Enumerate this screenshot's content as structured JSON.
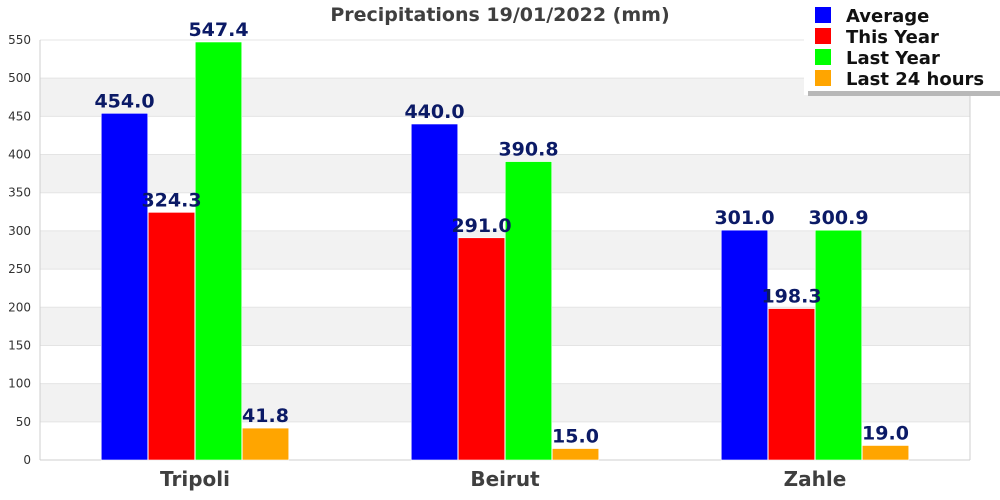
{
  "chart_data": {
    "type": "bar",
    "title": "Precipitations 19/01/2022 (mm)",
    "xlabel": "",
    "ylabel": "",
    "categories": [
      "Tripoli",
      "Beirut",
      "Zahle"
    ],
    "series": [
      {
        "name": "Average",
        "color": "#0000ff",
        "values": [
          454.0,
          440.0,
          301.0
        ]
      },
      {
        "name": "This Year",
        "color": "#ff0000",
        "values": [
          324.3,
          291.0,
          198.3
        ]
      },
      {
        "name": "Last Year",
        "color": "#00ff00",
        "values": [
          547.4,
          390.8,
          300.9
        ]
      },
      {
        "name": "Last 24 hours",
        "color": "#ffa500",
        "values": [
          41.8,
          15.0,
          19.0
        ]
      }
    ],
    "value_labels": [
      [
        "454.0",
        "440.0",
        "301.0"
      ],
      [
        "324.3",
        "291.0",
        "198.3"
      ],
      [
        "547.4",
        "390.8",
        "300.9"
      ],
      [
        "41.8",
        "15.0",
        "19.0"
      ]
    ],
    "ylim": [
      0,
      550
    ],
    "yticks": [
      0,
      50,
      100,
      150,
      200,
      250,
      300,
      350,
      400,
      450,
      500,
      550
    ],
    "grid": true,
    "band_color": "#f2f2f2",
    "legend_position": "top-right"
  }
}
